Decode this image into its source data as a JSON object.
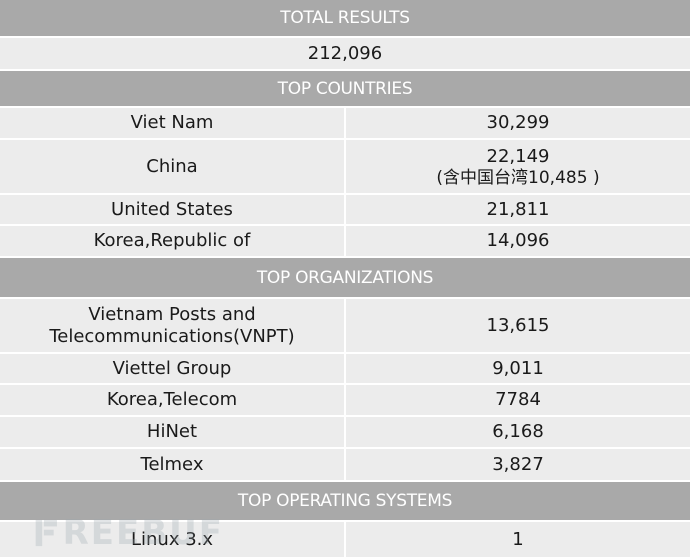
{
  "total_results": {
    "header": "TOTAL RESULTS",
    "value": "212,096"
  },
  "top_countries": {
    "header": "TOP COUNTRIES",
    "rows": [
      {
        "name": "Viet Nam",
        "value": "30,299"
      },
      {
        "name": "China",
        "value": "22,149",
        "note": "(含中国台湾10,485 )"
      },
      {
        "name": "United States",
        "value": "21,811"
      },
      {
        "name": "Korea,Republic of",
        "value": "14,096"
      }
    ]
  },
  "top_organizations": {
    "header": "TOP ORGANIZATIONS",
    "rows": [
      {
        "name_line1": "Vietnam Posts and",
        "name_line2": "Telecommunications(VNPT)",
        "value": "13,615"
      },
      {
        "name": "Viettel Group",
        "value": "9,011"
      },
      {
        "name": "Korea,Telecom",
        "value": "7784"
      },
      {
        "name": "HiNet",
        "value": "6,168"
      },
      {
        "name": "Telmex",
        "value": "3,827"
      }
    ]
  },
  "top_operating_systems": {
    "header": "TOP OPERATING SYSTEMS",
    "rows": [
      {
        "name": "Linux 3.x",
        "value": "1"
      }
    ]
  },
  "watermark": {
    "text": "REEBUF"
  }
}
